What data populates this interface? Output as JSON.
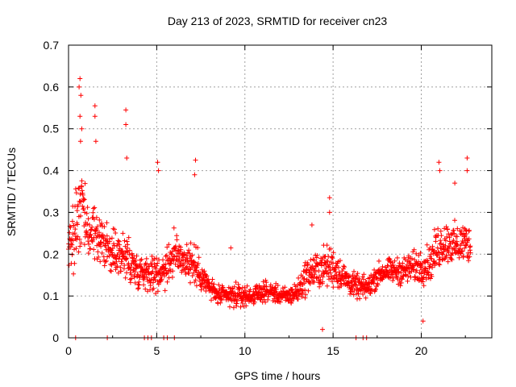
{
  "chart_data": {
    "type": "scatter",
    "title": "Day 213 of 2023, SRMTID for receiver cn23",
    "xlabel": "GPS time / hours",
    "ylabel": "SRMTID / TECUs",
    "xlim": [
      0,
      24
    ],
    "ylim": [
      0,
      0.7
    ],
    "xticks": [
      "0",
      "5",
      "10",
      "15",
      "20"
    ],
    "yticks": [
      "0",
      "0.1",
      "0.2",
      "0.3",
      "0.4",
      "0.5",
      "0.6",
      "0.7"
    ],
    "grid": true,
    "series": [
      {
        "name": "SRMTID",
        "marker": "+",
        "color": "#ff0000",
        "envelope": {
          "x": [
            0,
            0.3,
            0.6,
            0.8,
            1.0,
            1.5,
            2.0,
            2.5,
            3.0,
            3.3,
            3.7,
            4.0,
            4.5,
            5.0,
            5.5,
            6.0,
            6.5,
            7.0,
            7.5,
            8.0,
            8.5,
            9.0,
            9.5,
            10.0,
            10.5,
            11.0,
            11.5,
            12.0,
            12.5,
            13.0,
            13.5,
            14.0,
            14.5,
            15.0,
            15.5,
            16.0,
            16.5,
            17.0,
            17.5,
            18.0,
            18.5,
            19.0,
            19.5,
            20.0,
            20.5,
            21.0,
            21.5,
            22.0,
            22.5,
            22.8
          ],
          "center": [
            0.22,
            0.25,
            0.32,
            0.3,
            0.26,
            0.24,
            0.22,
            0.2,
            0.2,
            0.19,
            0.17,
            0.16,
            0.16,
            0.15,
            0.17,
            0.2,
            0.19,
            0.18,
            0.15,
            0.12,
            0.1,
            0.1,
            0.1,
            0.1,
            0.1,
            0.11,
            0.11,
            0.1,
            0.1,
            0.11,
            0.15,
            0.16,
            0.17,
            0.17,
            0.15,
            0.13,
            0.12,
            0.12,
            0.15,
            0.16,
            0.16,
            0.16,
            0.17,
            0.17,
            0.18,
            0.22,
            0.23,
            0.22,
            0.23,
            0.22
          ],
          "spread": [
            0.08,
            0.12,
            0.18,
            0.14,
            0.1,
            0.1,
            0.08,
            0.08,
            0.08,
            0.1,
            0.06,
            0.06,
            0.06,
            0.06,
            0.07,
            0.08,
            0.06,
            0.08,
            0.05,
            0.04,
            0.03,
            0.04,
            0.04,
            0.03,
            0.03,
            0.03,
            0.03,
            0.03,
            0.03,
            0.04,
            0.06,
            0.06,
            0.07,
            0.07,
            0.05,
            0.04,
            0.04,
            0.04,
            0.04,
            0.04,
            0.04,
            0.05,
            0.05,
            0.06,
            0.06,
            0.08,
            0.07,
            0.07,
            0.07,
            0.06
          ]
        },
        "peaks": [
          {
            "x": 0.65,
            "y": 0.62
          },
          {
            "x": 0.6,
            "y": 0.6
          },
          {
            "x": 0.7,
            "y": 0.58
          },
          {
            "x": 0.65,
            "y": 0.53
          },
          {
            "x": 0.75,
            "y": 0.5
          },
          {
            "x": 0.68,
            "y": 0.47
          },
          {
            "x": 1.5,
            "y": 0.555
          },
          {
            "x": 1.5,
            "y": 0.53
          },
          {
            "x": 1.55,
            "y": 0.47
          },
          {
            "x": 3.25,
            "y": 0.545
          },
          {
            "x": 3.25,
            "y": 0.51
          },
          {
            "x": 3.3,
            "y": 0.43
          },
          {
            "x": 5.05,
            "y": 0.42
          },
          {
            "x": 5.1,
            "y": 0.4
          },
          {
            "x": 7.2,
            "y": 0.425
          },
          {
            "x": 7.15,
            "y": 0.39
          },
          {
            "x": 9.2,
            "y": 0.215
          },
          {
            "x": 14.8,
            "y": 0.335
          },
          {
            "x": 14.8,
            "y": 0.3
          },
          {
            "x": 13.8,
            "y": 0.27
          },
          {
            "x": 14.4,
            "y": 0.02
          },
          {
            "x": 21.0,
            "y": 0.42
          },
          {
            "x": 21.05,
            "y": 0.4
          },
          {
            "x": 22.6,
            "y": 0.43
          },
          {
            "x": 22.6,
            "y": 0.4
          },
          {
            "x": 21.9,
            "y": 0.37
          },
          {
            "x": 20.1,
            "y": 0.04
          }
        ],
        "gaps_at_zero": [
          0.4,
          2.2,
          4.3,
          4.5,
          4.7,
          5.4,
          5.6,
          6.0,
          16.3,
          16.7,
          16.9
        ]
      }
    ]
  }
}
